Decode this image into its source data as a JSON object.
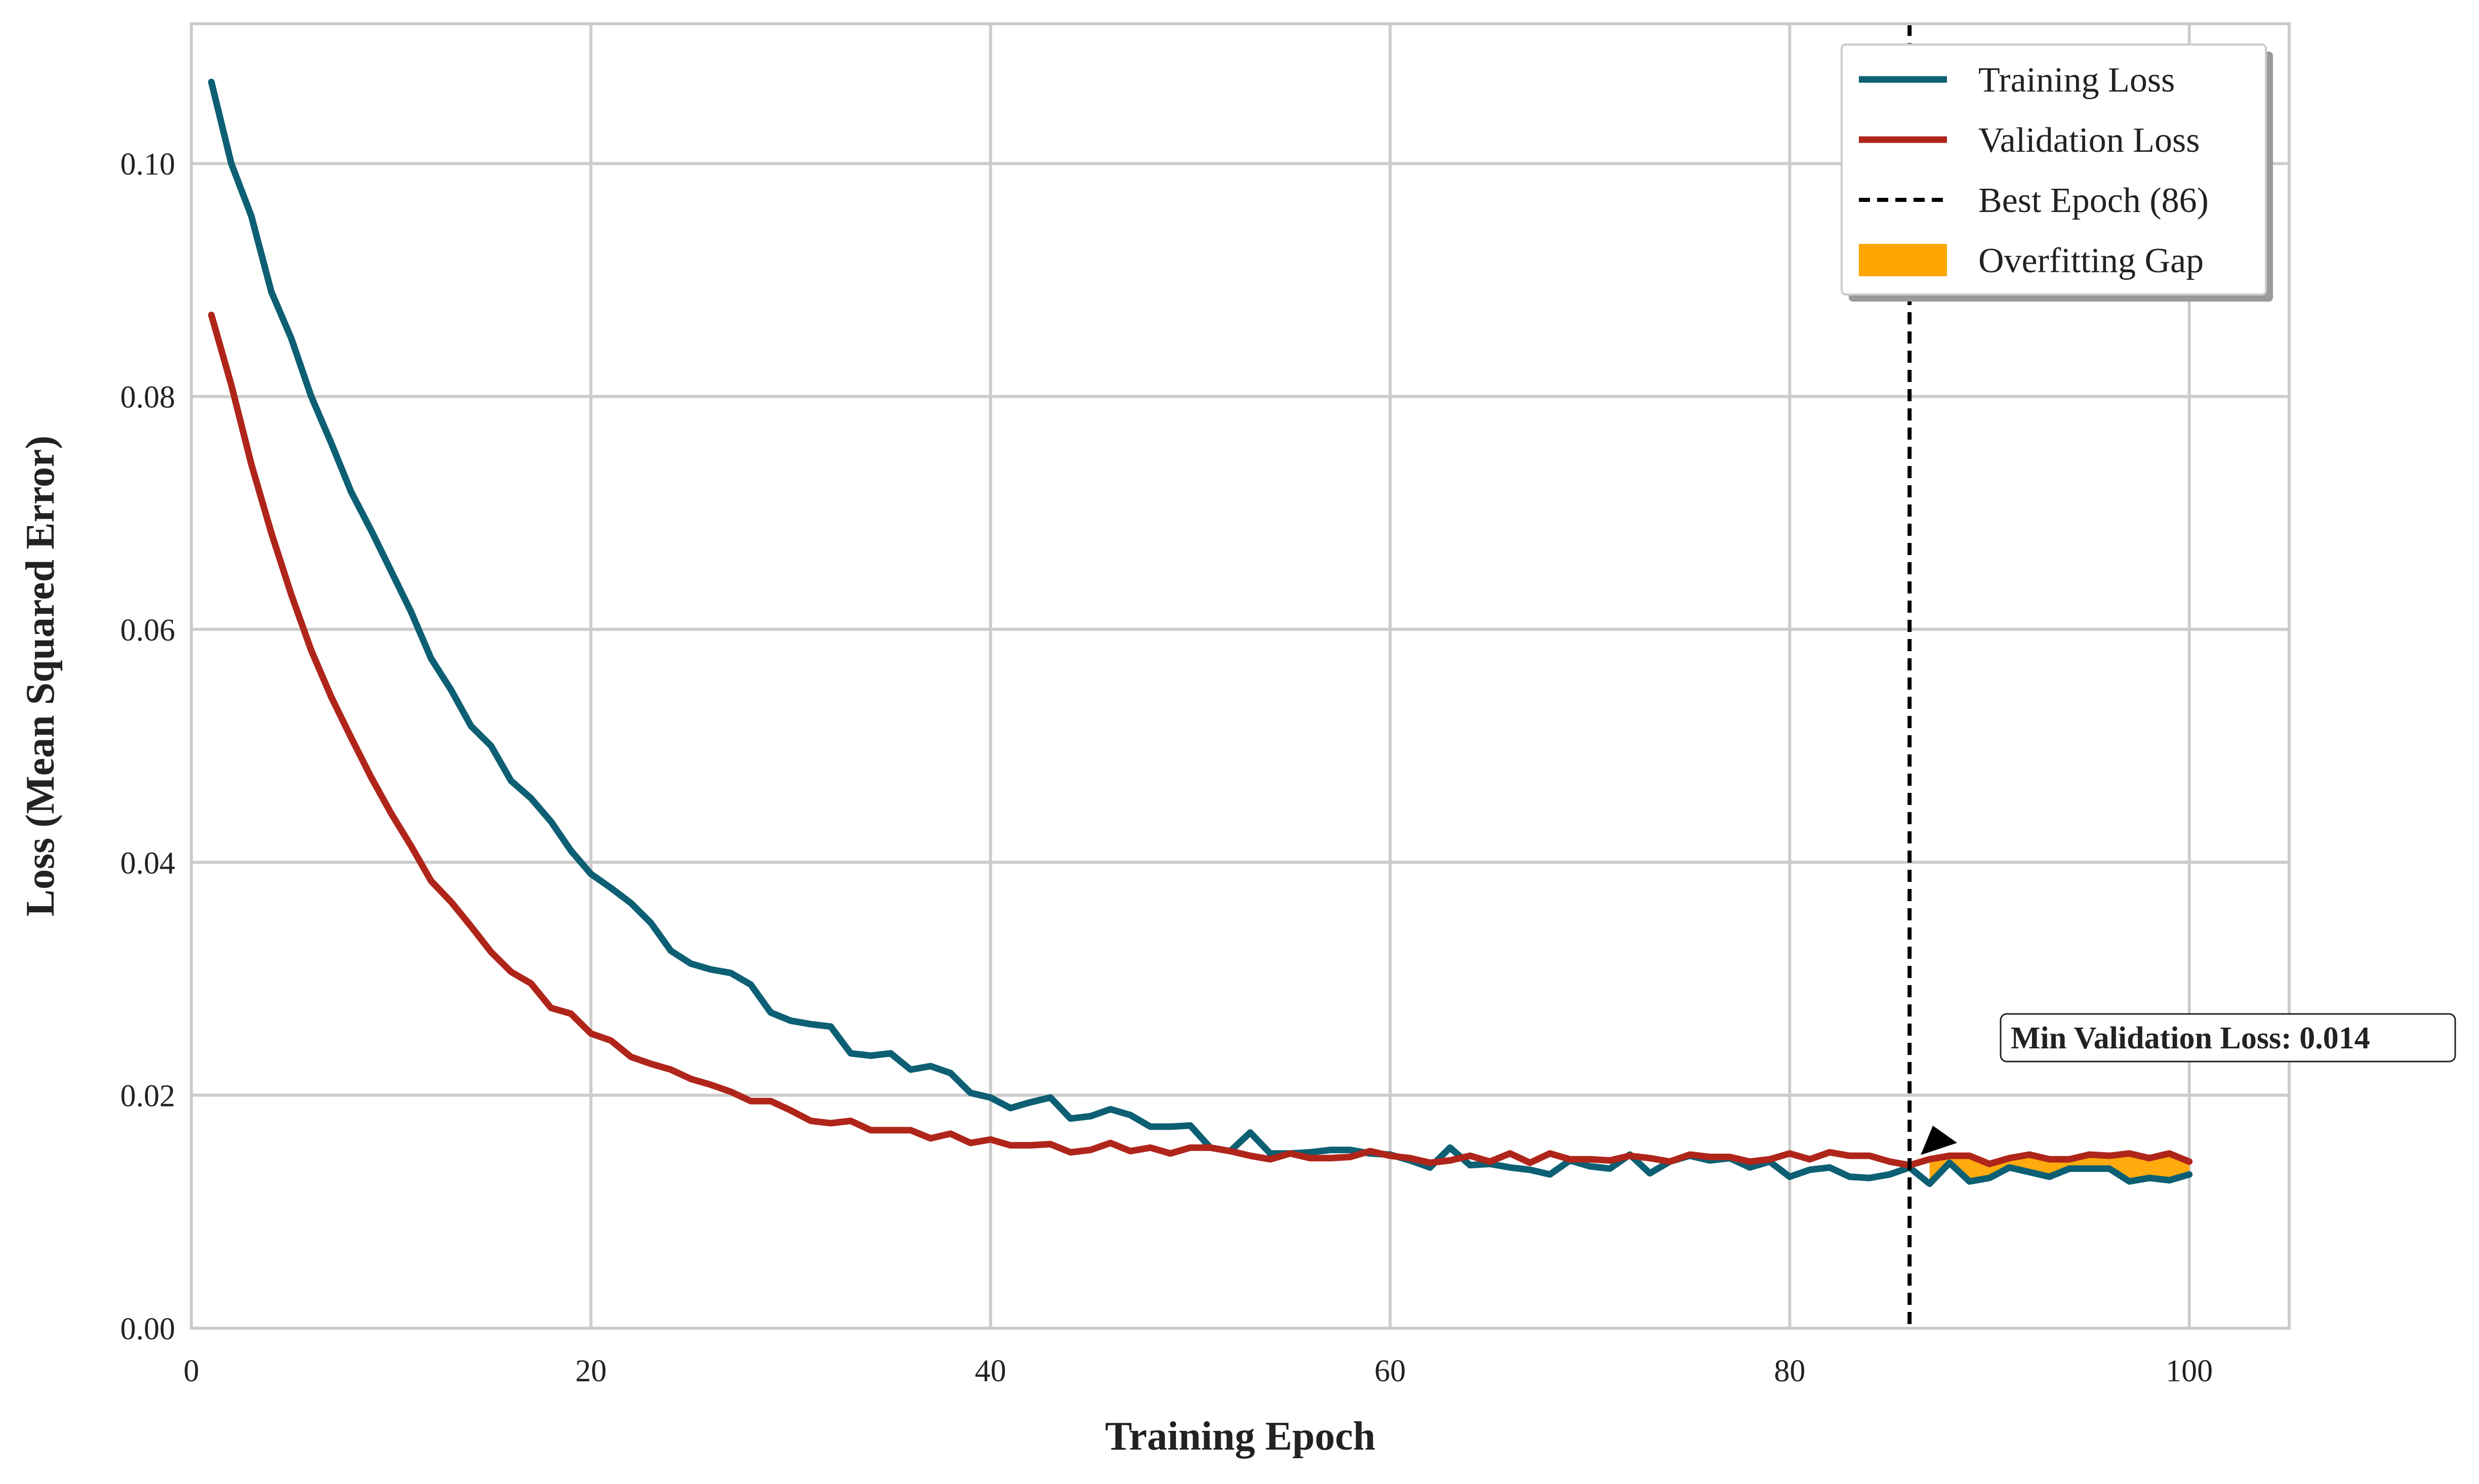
{
  "chart_data": {
    "type": "line",
    "title": "",
    "xlabel": "Training Epoch",
    "ylabel": "Loss (Mean Squared Error)",
    "xlim": [
      0,
      105
    ],
    "ylim": [
      0,
      0.112
    ],
    "xticks": [
      0,
      20,
      40,
      60,
      80,
      100
    ],
    "xtick_labels": [
      "0",
      "20",
      "40",
      "60",
      "80",
      "100"
    ],
    "yticks": [
      0,
      0.02,
      0.04,
      0.06,
      0.08,
      0.1
    ],
    "ytick_labels": [
      "0.00",
      "0.02",
      "0.04",
      "0.06",
      "0.08",
      "0.10"
    ],
    "grid": true,
    "legend_position": "top-right",
    "x": [
      1,
      2,
      3,
      4,
      5,
      6,
      7,
      8,
      9,
      10,
      11,
      12,
      13,
      14,
      15,
      16,
      17,
      18,
      19,
      20,
      21,
      22,
      23,
      24,
      25,
      26,
      27,
      28,
      29,
      30,
      31,
      32,
      33,
      34,
      35,
      36,
      37,
      38,
      39,
      40,
      41,
      42,
      43,
      44,
      45,
      46,
      47,
      48,
      49,
      50,
      51,
      52,
      53,
      54,
      55,
      56,
      57,
      58,
      59,
      60,
      61,
      62,
      63,
      64,
      65,
      66,
      67,
      68,
      69,
      70,
      71,
      72,
      73,
      74,
      75,
      76,
      77,
      78,
      79,
      80,
      81,
      82,
      83,
      84,
      85,
      86,
      87,
      88,
      89,
      90,
      91,
      92,
      93,
      94,
      95,
      96,
      97,
      98,
      99,
      100
    ],
    "series": [
      {
        "name": "Training Loss",
        "color": "#0d5f73",
        "values": [
          0.107,
          0.1,
          0.0955,
          0.089,
          0.085,
          0.08,
          0.076,
          0.0718,
          0.0685,
          0.065,
          0.0615,
          0.0575,
          0.0548,
          0.0517,
          0.05,
          0.047,
          0.0455,
          0.0435,
          0.041,
          0.039,
          0.0378,
          0.0365,
          0.0348,
          0.0324,
          0.0313,
          0.0308,
          0.0305,
          0.0295,
          0.0271,
          0.0264,
          0.0261,
          0.0259,
          0.0236,
          0.0234,
          0.0236,
          0.0222,
          0.0225,
          0.0219,
          0.0202,
          0.0198,
          0.0189,
          0.0194,
          0.0198,
          0.018,
          0.0182,
          0.0188,
          0.0183,
          0.0173,
          0.0173,
          0.0174,
          0.0155,
          0.0152,
          0.0168,
          0.015,
          0.015,
          0.0151,
          0.0153,
          0.0153,
          0.015,
          0.0149,
          0.0144,
          0.0138,
          0.0155,
          0.014,
          0.0141,
          0.0138,
          0.0136,
          0.0132,
          0.0144,
          0.0139,
          0.0137,
          0.0149,
          0.0133,
          0.0143,
          0.0148,
          0.0144,
          0.0146,
          0.0138,
          0.0143,
          0.013,
          0.0136,
          0.0138,
          0.013,
          0.0129,
          0.0132,
          0.0138,
          0.0124,
          0.0142,
          0.0126,
          0.0129,
          0.0138,
          0.0134,
          0.013,
          0.0137,
          0.0137,
          0.0137,
          0.0126,
          0.0129,
          0.0127,
          0.0132
        ]
      },
      {
        "name": "Validation Loss",
        "color": "#b0251a",
        "values": [
          0.087,
          0.081,
          0.0742,
          0.0683,
          0.063,
          0.0582,
          0.0542,
          0.0507,
          0.0473,
          0.0442,
          0.0414,
          0.0384,
          0.0366,
          0.0345,
          0.0323,
          0.0306,
          0.0296,
          0.0275,
          0.027,
          0.0253,
          0.0247,
          0.0233,
          0.0227,
          0.0222,
          0.0214,
          0.0209,
          0.0203,
          0.0195,
          0.0195,
          0.0187,
          0.0178,
          0.0176,
          0.0178,
          0.017,
          0.017,
          0.017,
          0.0163,
          0.0167,
          0.0159,
          0.0162,
          0.0157,
          0.0157,
          0.0158,
          0.0151,
          0.0153,
          0.0159,
          0.0152,
          0.0155,
          0.015,
          0.0155,
          0.0155,
          0.0152,
          0.0148,
          0.0145,
          0.015,
          0.0146,
          0.0146,
          0.0147,
          0.0152,
          0.0148,
          0.0146,
          0.0142,
          0.0144,
          0.0148,
          0.0143,
          0.015,
          0.0142,
          0.015,
          0.0145,
          0.0145,
          0.0144,
          0.0148,
          0.0146,
          0.0143,
          0.0149,
          0.0147,
          0.0147,
          0.0143,
          0.0145,
          0.015,
          0.0145,
          0.0151,
          0.0148,
          0.0148,
          0.0143,
          0.014,
          0.0145,
          0.0148,
          0.0148,
          0.0141,
          0.0146,
          0.0149,
          0.0145,
          0.0145,
          0.0149,
          0.0148,
          0.015,
          0.0146,
          0.015,
          0.0143
        ]
      }
    ],
    "best_epoch": {
      "label": "Best Epoch (86)",
      "x": 86,
      "color": "#000000"
    },
    "overfit_gap": {
      "label": "Overfitting Gap",
      "from_epoch": 87,
      "color": "#ffa500"
    },
    "annotation": {
      "text": "Min Validation Loss: 0.014",
      "x": 86,
      "y": 0.014
    }
  }
}
